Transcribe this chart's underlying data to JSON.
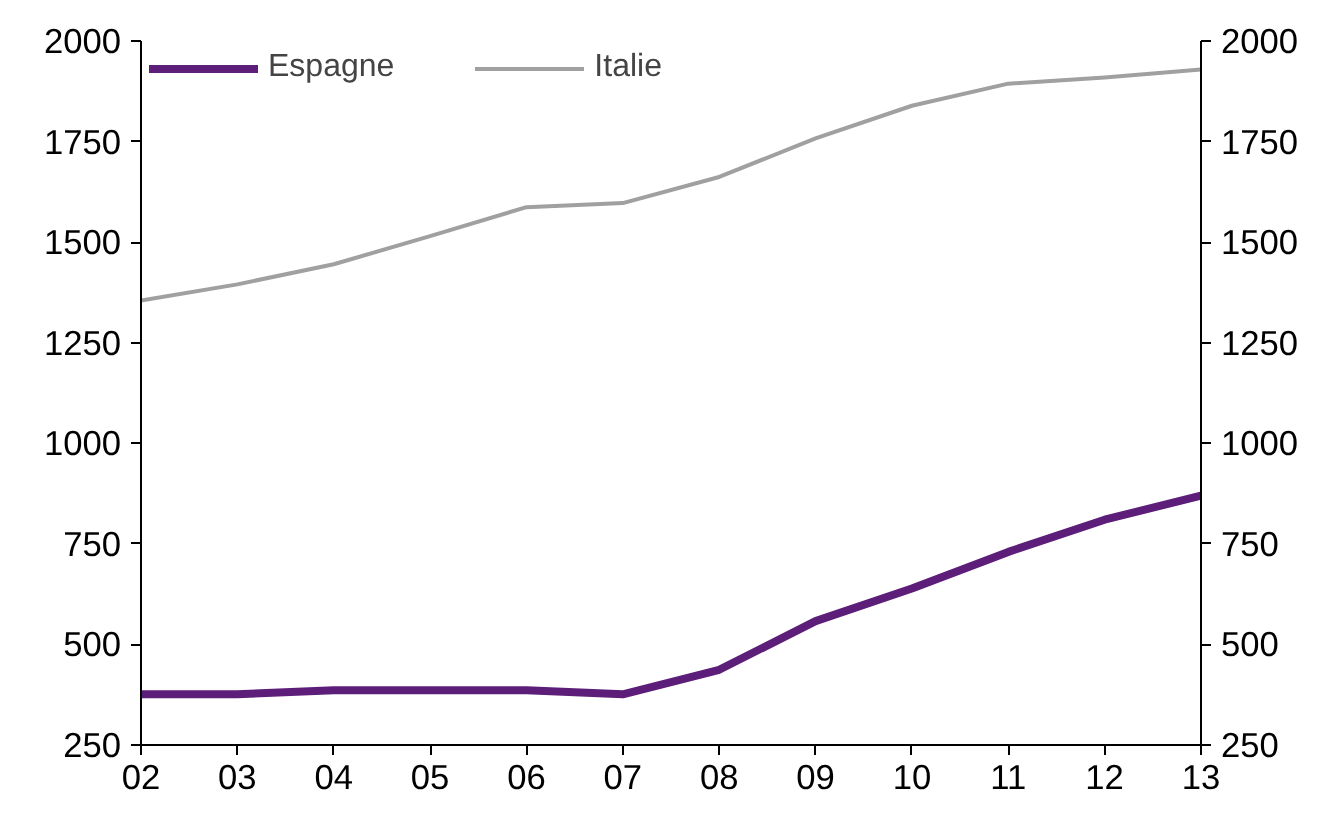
{
  "chart_data": {
    "type": "line",
    "x": [
      2,
      3,
      4,
      5,
      6,
      7,
      8,
      9,
      10,
      11,
      12,
      13
    ],
    "xlim": [
      2,
      13
    ],
    "xticks": [
      {
        "value": 2,
        "label": "02"
      },
      {
        "value": 3,
        "label": "03"
      },
      {
        "value": 4,
        "label": "04"
      },
      {
        "value": 5,
        "label": "05"
      },
      {
        "value": 6,
        "label": "06"
      },
      {
        "value": 7,
        "label": "07"
      },
      {
        "value": 8,
        "label": "08"
      },
      {
        "value": 9,
        "label": "09"
      },
      {
        "value": 10,
        "label": "10"
      },
      {
        "value": 11,
        "label": "11"
      },
      {
        "value": 12,
        "label": "12"
      },
      {
        "value": 13,
        "label": "13"
      }
    ],
    "ylim": [
      250,
      2000
    ],
    "yticks": [
      250,
      500,
      750,
      1000,
      1250,
      1500,
      1750,
      2000
    ],
    "y2lim": [
      250,
      2000
    ],
    "y2ticks": [
      250,
      500,
      750,
      1000,
      1250,
      1500,
      1750,
      2000
    ],
    "series": [
      {
        "name": "Espagne",
        "color": "#5c1e78",
        "values": [
          376,
          376,
          386,
          386,
          386,
          376,
          437,
          558,
          639,
          730,
          810,
          870
        ]
      },
      {
        "name": "Italie",
        "color": "#a0a0a0",
        "values": [
          1355,
          1395,
          1445,
          1515,
          1587,
          1597,
          1662,
          1758,
          1839,
          1894,
          1909,
          1929
        ]
      }
    ],
    "grid": false,
    "legend": "top left",
    "line_style": "solid"
  }
}
